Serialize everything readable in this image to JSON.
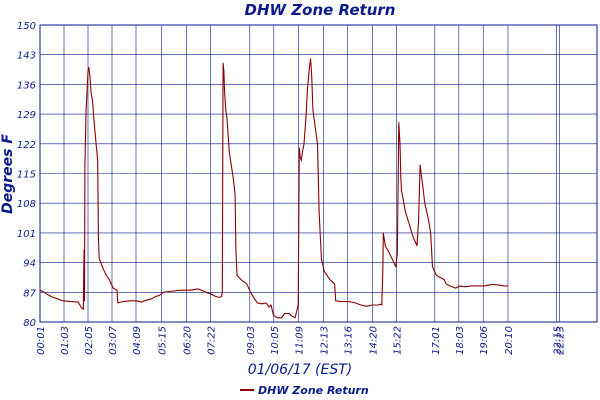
{
  "chart_data": {
    "type": "line",
    "title": "DHW Zone Return",
    "xlabel": "01/06/17 (EST)",
    "ylabel": "Degrees F",
    "ylim": [
      80,
      150
    ],
    "y_ticks": [
      "80",
      "87",
      "94",
      "101",
      "108",
      "115",
      "122",
      "129",
      "136",
      "143",
      "150"
    ],
    "x_range": [
      1,
      1440
    ],
    "x_ticks": [
      {
        "label": "00:01",
        "t": 1
      },
      {
        "label": "01:03",
        "t": 63
      },
      {
        "label": "02:05",
        "t": 125
      },
      {
        "label": "03:07",
        "t": 187
      },
      {
        "label": "04:09",
        "t": 249
      },
      {
        "label": "05:15",
        "t": 315
      },
      {
        "label": "06:20",
        "t": 380
      },
      {
        "label": "07:22",
        "t": 442
      },
      {
        "label": "09:03",
        "t": 543
      },
      {
        "label": "10:05",
        "t": 605
      },
      {
        "label": "11:09",
        "t": 669
      },
      {
        "label": "12:13",
        "t": 733
      },
      {
        "label": "13:16",
        "t": 796
      },
      {
        "label": "14:20",
        "t": 860
      },
      {
        "label": "15:22",
        "t": 922
      },
      {
        "label": "17:01",
        "t": 1021
      },
      {
        "label": "18:03",
        "t": 1083
      },
      {
        "label": "19:06",
        "t": 1146
      },
      {
        "label": "20:10",
        "t": 1210
      },
      {
        "label": "22:15",
        "t": 1335
      },
      {
        "label": "22:23",
        "t": 1343
      }
    ],
    "grid": true,
    "legend_position": "bottom-left",
    "series": [
      {
        "name": "DHW Zone Return",
        "color": "#8b0000",
        "points": [
          [
            1,
            87.5
          ],
          [
            12,
            87
          ],
          [
            20,
            86.5
          ],
          [
            30,
            86
          ],
          [
            45,
            85.5
          ],
          [
            60,
            85
          ],
          [
            80,
            84.8
          ],
          [
            100,
            84.7
          ],
          [
            107,
            83.5
          ],
          [
            113,
            83
          ],
          [
            113,
            84.5
          ],
          [
            114,
            91
          ],
          [
            115,
            97
          ],
          [
            116,
            85
          ],
          [
            117,
            117
          ],
          [
            120,
            130
          ],
          [
            125,
            139
          ],
          [
            127,
            140
          ],
          [
            130,
            138
          ],
          [
            133,
            134
          ],
          [
            137,
            132
          ],
          [
            140,
            128
          ],
          [
            146,
            122
          ],
          [
            150,
            118
          ],
          [
            152,
            100
          ],
          [
            154,
            95
          ],
          [
            162,
            93
          ],
          [
            172,
            91
          ],
          [
            180,
            90
          ],
          [
            190,
            88
          ],
          [
            200,
            87.5
          ],
          [
            202,
            84.5
          ],
          [
            215,
            84.8
          ],
          [
            235,
            85
          ],
          [
            250,
            85
          ],
          [
            265,
            84.7
          ],
          [
            270,
            85
          ],
          [
            290,
            85.5
          ],
          [
            300,
            86
          ],
          [
            310,
            86.3
          ],
          [
            320,
            87
          ],
          [
            345,
            87.3
          ],
          [
            370,
            87.5
          ],
          [
            390,
            87.5
          ],
          [
            410,
            87.8
          ],
          [
            430,
            87
          ],
          [
            445,
            86.5
          ],
          [
            455,
            86
          ],
          [
            465,
            85.8
          ],
          [
            470,
            86
          ],
          [
            472,
            87
          ],
          [
            474,
            141
          ],
          [
            476,
            139
          ],
          [
            478,
            134
          ],
          [
            481,
            130
          ],
          [
            484,
            128
          ],
          [
            490,
            120
          ],
          [
            500,
            114
          ],
          [
            505,
            110
          ],
          [
            507,
            97
          ],
          [
            510,
            91
          ],
          [
            520,
            90
          ],
          [
            535,
            89
          ],
          [
            545,
            87
          ],
          [
            555,
            85.5
          ],
          [
            563,
            84.5
          ],
          [
            575,
            84.3
          ],
          [
            585,
            84.5
          ],
          [
            593,
            83.5
          ],
          [
            598,
            84
          ],
          [
            603,
            82
          ],
          [
            605,
            81.5
          ],
          [
            615,
            81
          ],
          [
            625,
            81
          ],
          [
            633,
            82
          ],
          [
            645,
            82
          ],
          [
            650,
            81.5
          ],
          [
            660,
            81
          ],
          [
            668,
            84
          ],
          [
            671,
            121
          ],
          [
            673,
            119
          ],
          [
            676,
            118
          ],
          [
            679,
            120
          ],
          [
            683,
            122
          ],
          [
            688,
            128
          ],
          [
            692,
            135
          ],
          [
            697,
            140
          ],
          [
            700,
            142
          ],
          [
            703,
            138
          ],
          [
            706,
            130
          ],
          [
            712,
            126
          ],
          [
            718,
            122
          ],
          [
            722,
            106
          ],
          [
            728,
            95
          ],
          [
            735,
            92
          ],
          [
            750,
            90
          ],
          [
            762,
            89
          ],
          [
            765,
            85
          ],
          [
            780,
            84.8
          ],
          [
            800,
            84.8
          ],
          [
            815,
            84.5
          ],
          [
            830,
            84
          ],
          [
            845,
            83.7
          ],
          [
            860,
            84
          ],
          [
            875,
            84
          ],
          [
            880,
            84.2
          ],
          [
            884,
            84
          ],
          [
            887,
            93
          ],
          [
            888,
            101
          ],
          [
            893,
            98
          ],
          [
            905,
            96
          ],
          [
            910,
            95
          ],
          [
            920,
            93
          ],
          [
            924,
            96
          ],
          [
            928,
            127
          ],
          [
            931,
            122
          ],
          [
            933,
            114
          ],
          [
            935,
            111
          ],
          [
            945,
            106
          ],
          [
            955,
            103
          ],
          [
            965,
            100
          ],
          [
            975,
            98
          ],
          [
            979,
            104
          ],
          [
            983,
            117
          ],
          [
            987,
            114
          ],
          [
            990,
            112
          ],
          [
            995,
            108
          ],
          [
            1005,
            104
          ],
          [
            1010,
            101
          ],
          [
            1015,
            93
          ],
          [
            1025,
            91
          ],
          [
            1035,
            90.5
          ],
          [
            1045,
            90
          ],
          [
            1050,
            89
          ],
          [
            1060,
            88.5
          ],
          [
            1075,
            88
          ],
          [
            1085,
            88.5
          ],
          [
            1100,
            88.3
          ],
          [
            1115,
            88.5
          ],
          [
            1130,
            88.5
          ],
          [
            1150,
            88.5
          ],
          [
            1165,
            88.8
          ],
          [
            1180,
            88.8
          ],
          [
            1200,
            88.5
          ],
          [
            1210,
            88.5
          ]
        ]
      }
    ]
  }
}
